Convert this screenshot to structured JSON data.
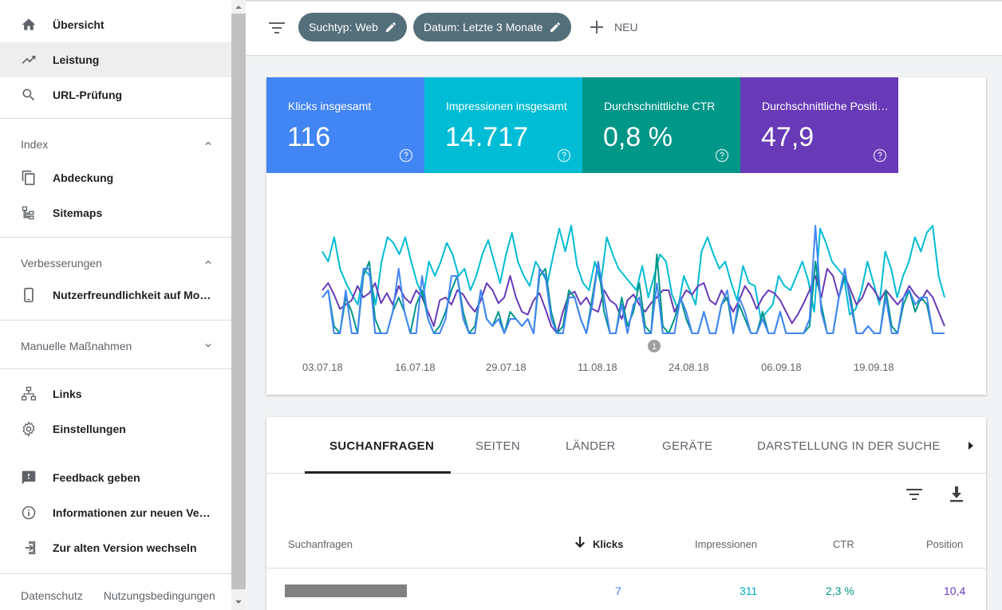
{
  "sidebar": {
    "top_items": [
      {
        "label": "Übersicht",
        "icon": "home-icon"
      },
      {
        "label": "Leistung",
        "icon": "trending-up-icon",
        "active": true
      },
      {
        "label": "URL-Prüfung",
        "icon": "search-icon"
      }
    ],
    "sections": [
      {
        "title": "Index",
        "expanded": true,
        "items": [
          {
            "label": "Abdeckung",
            "icon": "copy-pages-icon"
          },
          {
            "label": "Sitemaps",
            "icon": "sitemap-icon"
          }
        ]
      },
      {
        "title": "Verbesserungen",
        "expanded": true,
        "items": [
          {
            "label": "Nutzerfreundlichkeit auf Mo…",
            "icon": "smartphone-icon"
          }
        ]
      },
      {
        "title": "Manuelle Maßnahmen",
        "expanded": false,
        "items": []
      }
    ],
    "extra_items": [
      {
        "label": "Links",
        "icon": "network-icon"
      },
      {
        "label": "Einstellungen",
        "icon": "gear-icon"
      }
    ],
    "support_items": [
      {
        "label": "Feedback geben",
        "icon": "feedback-icon"
      },
      {
        "label": "Informationen zur neuen Ver…",
        "icon": "info-icon"
      },
      {
        "label": "Zur alten Version wechseln",
        "icon": "exit-icon"
      }
    ],
    "footer": {
      "privacy": "Datenschutz",
      "terms": "Nutzungsbedingungen"
    }
  },
  "filterbar": {
    "chips": [
      {
        "label": "Suchtyp: Web"
      },
      {
        "label": "Datum: Letzte 3 Monate"
      }
    ],
    "new_label": "NEU"
  },
  "metrics": [
    {
      "label": "Klicks insgesamt",
      "value": "116",
      "color": "#4285f4"
    },
    {
      "label": "Impressionen insgesamt",
      "value": "14.717",
      "color": "#00bcd4"
    },
    {
      "label": "Durchschnittliche CTR",
      "value": "0,8 %",
      "color": "#009688"
    },
    {
      "label": "Durchschnittliche Positi…",
      "value": "47,9",
      "color": "#673ab7"
    }
  ],
  "chart_data": {
    "type": "line",
    "x_ticks": [
      "03.07.18",
      "16.07.18",
      "29.07.18",
      "11.08.18",
      "24.08.18",
      "06.09.18",
      "19.09.18"
    ],
    "annotation": "1",
    "series": [
      {
        "color": "#00bcd4",
        "values": [
          0.62,
          0.55,
          0.72,
          0.5,
          0.4,
          0.32,
          0.25,
          0.5,
          0.45,
          0.25,
          0.55,
          0.72,
          0.68,
          0.6,
          0.72,
          0.55,
          0.4,
          0.3,
          0.55,
          0.45,
          0.55,
          0.68,
          0.6,
          0.45,
          0.5,
          0.35,
          0.45,
          0.6,
          0.7,
          0.55,
          0.4,
          0.6,
          0.75,
          0.55,
          0.45,
          0.38,
          0.55,
          0.48,
          0.4,
          0.6,
          0.78,
          0.62,
          0.8,
          0.52,
          0.4,
          0.35,
          0.55,
          0.4,
          0.72,
          0.6,
          0.5,
          0.45,
          0.4,
          0.35,
          0.52,
          0.3,
          0.45,
          0.6,
          0.55,
          0.32,
          0.22,
          0.45,
          0.35,
          0.25,
          0.62,
          0.72,
          0.6,
          0.5,
          0.55,
          0.4,
          0.28,
          0.52,
          0.4,
          0.38,
          0.15,
          0.2,
          0.25,
          0.45,
          0.38,
          0.35,
          0.45,
          0.55,
          0.42,
          0.2,
          0.78,
          0.68,
          0.55,
          0.5,
          0.45,
          0.18,
          0.22,
          0.35,
          0.55,
          0.4,
          0.25,
          0.62,
          0.5,
          0.3,
          0.45,
          0.55,
          0.72,
          0.62,
          0.75,
          0.8,
          0.45,
          0.3
        ]
      },
      {
        "color": "#673ab7",
        "values": [
          0.35,
          0.4,
          0.32,
          0.22,
          0.25,
          0.28,
          0.38,
          0.3,
          0.33,
          0.4,
          0.26,
          0.33,
          0.25,
          0.38,
          0.3,
          0.26,
          0.35,
          0.3,
          0.2,
          0.1,
          0.28,
          0.3,
          0.25,
          0.35,
          0.32,
          0.25,
          0.2,
          0.28,
          0.4,
          0.35,
          0.26,
          0.3,
          0.45,
          0.3,
          0.2,
          0.18,
          0.28,
          0.33,
          0.22,
          0.1,
          0.05,
          0.2,
          0.32,
          0.34,
          0.25,
          0.3,
          0.22,
          0.2,
          0.35,
          0.28,
          0.25,
          0.15,
          0.28,
          0.32,
          0.25,
          0.2,
          0.26,
          0.3,
          0.35,
          0.35,
          0.2,
          0.28,
          0.35,
          0.32,
          0.38,
          0.4,
          0.28,
          0.25,
          0.35,
          0.28,
          0.2,
          0.28,
          0.38,
          0.32,
          0.22,
          0.3,
          0.35,
          0.33,
          0.28,
          0.2,
          0.12,
          0.18,
          0.26,
          0.35,
          0.45,
          0.3,
          0.5,
          0.45,
          0.3,
          0.45,
          0.35,
          0.25,
          0.3,
          0.4,
          0.35,
          0.28,
          0.35,
          0.3,
          0.25,
          0.3,
          0.38,
          0.32,
          0.28,
          0.35,
          0.3,
          0.2,
          0.1
        ]
      },
      {
        "color": "#009688",
        "values": [
          0.3,
          0.35,
          0.1,
          0.05,
          0.3,
          0.2,
          0.05,
          0.45,
          0.55,
          0.15,
          0.05,
          0.05,
          0.2,
          0.3,
          0.2,
          0.05,
          0.25,
          0.35,
          0.15,
          0.05,
          0.1,
          0.2,
          0.35,
          0.45,
          0.2,
          0.05,
          0.1,
          0.35,
          0.15,
          0.1,
          0.2,
          0.05,
          0.2,
          0.15,
          0.1,
          0.15,
          0.05,
          0.45,
          0.5,
          0.2,
          0.05,
          0.1,
          0.35,
          0.3,
          0.15,
          0.05,
          0.3,
          0.55,
          0.2,
          0.05,
          0.05,
          0.3,
          0.1,
          0.2,
          0.4,
          0.1,
          0.05,
          0.6,
          0.1,
          0.05,
          0.15,
          0.3,
          0.15,
          0.05,
          0.05,
          0.2,
          0.05,
          0.05,
          0.25,
          0.3,
          0.05,
          0.25,
          0.15,
          0.05,
          0.05,
          0.2,
          0.05,
          0.05,
          0.2,
          0.05,
          0.05,
          0.05,
          0.05,
          0.1,
          0.55,
          0.25,
          0.05,
          0.05,
          0.3,
          0.45,
          0.3,
          0.05,
          0.05,
          0.1,
          0.05,
          0.05,
          0.35,
          0.1,
          0.05,
          0.25,
          0.35,
          0.2,
          0.3,
          0.25,
          0.05,
          0.05,
          0.05
        ]
      },
      {
        "color": "#4285f4",
        "values": [
          0.3,
          0.35,
          0.05,
          0.05,
          0.35,
          0.05,
          0.05,
          0.5,
          0.5,
          0.05,
          0.05,
          0.05,
          0.2,
          0.5,
          0.2,
          0.05,
          0.05,
          0.45,
          0.15,
          0.05,
          0.05,
          0.15,
          0.45,
          0.45,
          0.15,
          0.05,
          0.05,
          0.35,
          0.15,
          0.1,
          0.15,
          0.05,
          0.15,
          0.15,
          0.1,
          0.15,
          0.05,
          0.5,
          0.45,
          0.15,
          0.05,
          0.05,
          0.3,
          0.3,
          0.15,
          0.05,
          0.25,
          0.55,
          0.3,
          0.05,
          0.05,
          0.25,
          0.05,
          0.25,
          0.3,
          0.05,
          0.05,
          0.4,
          0.05,
          0.05,
          0.05,
          0.3,
          0.2,
          0.05,
          0.05,
          0.2,
          0.05,
          0.05,
          0.25,
          0.35,
          0.05,
          0.3,
          0.2,
          0.05,
          0.05,
          0.15,
          0.05,
          0.05,
          0.2,
          0.05,
          0.05,
          0.05,
          0.05,
          0.15,
          0.8,
          0.2,
          0.05,
          0.05,
          0.3,
          0.5,
          0.25,
          0.05,
          0.05,
          0.1,
          0.05,
          0.05,
          0.3,
          0.05,
          0.05,
          0.3,
          0.35,
          0.25,
          0.3,
          0.3,
          0.05,
          0.05,
          0.05
        ]
      }
    ]
  },
  "table": {
    "tabs": [
      "SUCHANFRAGEN",
      "SEITEN",
      "LÄNDER",
      "GERÄTE",
      "DARSTELLUNG IN DER SUCHE"
    ],
    "columns": {
      "query": "Suchanfragen",
      "clicks": "Klicks",
      "impressions": "Impressionen",
      "ctr": "CTR",
      "position": "Position"
    },
    "rows": [
      {
        "clicks": "7",
        "impressions": "311",
        "ctr": "2,3 %",
        "position": "10,4"
      }
    ]
  }
}
